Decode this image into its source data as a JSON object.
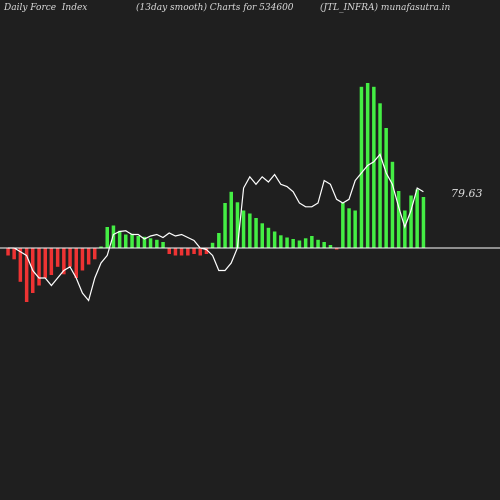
{
  "header": {
    "left": "Daily Force  Index",
    "center": "(13day smooth) Charts for 534600",
    "right": "(JTL_INFRA) munafasutra.in"
  },
  "colors": {
    "background": "#1f1f1f",
    "positive_bar": "#44ee44",
    "negative_bar": "#ee3333",
    "line": "#ffffff",
    "zero_line": "#ffffff"
  },
  "chart_data": {
    "type": "bar",
    "title": "",
    "xlabel": "",
    "ylabel": "",
    "grid": false,
    "legend": "none",
    "ylim": [
      -105,
      285
    ],
    "last_value_label": "79.63",
    "series": [
      {
        "type": "bar",
        "values": [
          -10,
          -15,
          -45,
          -72,
          -60,
          -50,
          -40,
          -36,
          -25,
          -35,
          -25,
          -40,
          -30,
          -22,
          -15,
          2,
          28,
          30,
          23,
          18,
          19,
          16,
          15,
          13,
          11,
          8,
          -8,
          -10,
          -10,
          -10,
          -8,
          -10,
          -8,
          7,
          20,
          60,
          75,
          61,
          50,
          46,
          40,
          33,
          27,
          22,
          17,
          14,
          12,
          10,
          13,
          16,
          11,
          8,
          4,
          -2,
          60,
          53,
          50,
          215,
          220,
          215,
          193,
          160,
          115,
          76,
          50,
          70,
          78,
          68
        ]
      },
      {
        "type": "line",
        "values": [
          0,
          0,
          -5,
          -10,
          -30,
          -40,
          -40,
          -50,
          -40,
          -30,
          -25,
          -40,
          -60,
          -70,
          -40,
          -20,
          -10,
          18,
          22,
          23,
          18,
          18,
          12,
          16,
          18,
          14,
          20,
          16,
          18,
          14,
          10,
          0,
          -2,
          -10,
          -30,
          -30,
          -20,
          0,
          80,
          95,
          85,
          95,
          88,
          98,
          85,
          82,
          75,
          60,
          55,
          55,
          60,
          90,
          85,
          65,
          60,
          65,
          90,
          100,
          110,
          115,
          125,
          100,
          85,
          55,
          28,
          50,
          80,
          75
        ]
      }
    ]
  }
}
